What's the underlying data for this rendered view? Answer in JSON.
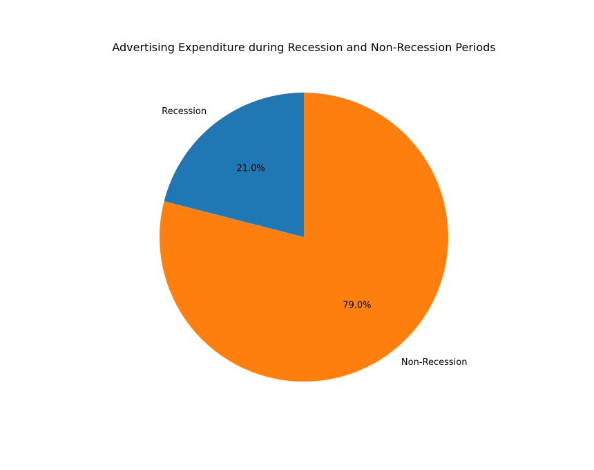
{
  "chart_data": {
    "type": "pie",
    "title": "Advertising Expenditure during Recession and Non-Recession Periods",
    "slices": [
      {
        "label": "Recession",
        "value": 21.0,
        "pct_label": "21.0%",
        "color": "#1f77b4"
      },
      {
        "label": "Non-Recession",
        "value": 79.0,
        "pct_label": "79.0%",
        "color": "#ff7f0e"
      }
    ],
    "start_angle_deg": 90,
    "direction": "counterclockwise"
  }
}
